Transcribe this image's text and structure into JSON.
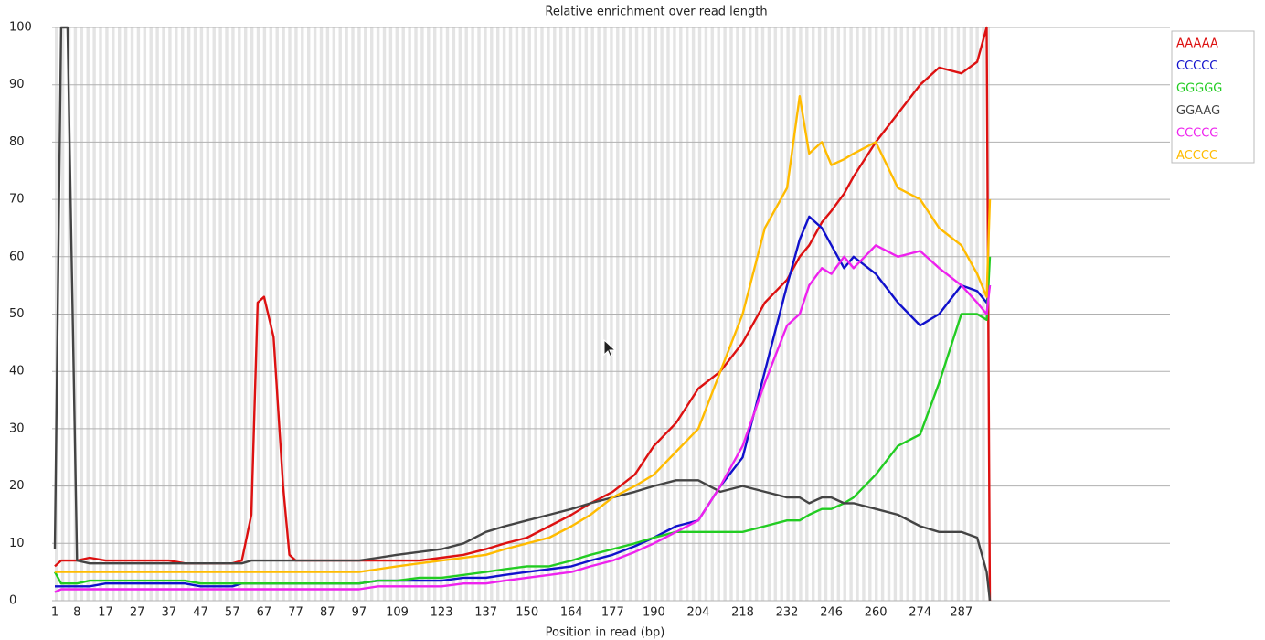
{
  "chart_data": {
    "type": "line",
    "title": "Relative enrichment over read length",
    "x_label": "Position in read (bp)",
    "x": [
      1,
      3,
      5,
      8,
      12,
      17,
      22,
      27,
      32,
      37,
      42,
      47,
      52,
      57,
      60,
      63,
      65,
      67,
      70,
      73,
      75,
      77,
      82,
      87,
      92,
      97,
      103,
      109,
      116,
      123,
      130,
      137,
      143,
      150,
      157,
      164,
      170,
      177,
      184,
      190,
      197,
      204,
      211,
      218,
      225,
      232,
      236,
      239,
      243,
      246,
      250,
      253,
      260,
      267,
      274,
      280,
      287,
      292,
      295,
      296
    ],
    "xlim": [
      1,
      296
    ],
    "xticks": [
      1,
      8,
      17,
      27,
      37,
      47,
      57,
      67,
      77,
      87,
      97,
      109,
      123,
      137,
      150,
      164,
      177,
      190,
      204,
      218,
      232,
      246,
      260,
      274,
      287
    ],
    "ylim": [
      0,
      100
    ],
    "yticks": [
      0,
      10,
      20,
      30,
      40,
      50,
      60,
      70,
      80,
      90,
      100
    ],
    "grid": true,
    "legend": "right",
    "series": [
      {
        "name": "AAAAA",
        "color": "#dd1111",
        "values": [
          6,
          7,
          7,
          7,
          7.5,
          7,
          7,
          7,
          7,
          7,
          6.5,
          6.5,
          6.5,
          6.5,
          7,
          15,
          52,
          53,
          46,
          20,
          8,
          7,
          7,
          7,
          7,
          7,
          7,
          7,
          7,
          7.5,
          8,
          9,
          10,
          11,
          13,
          15,
          17,
          19,
          22,
          27,
          31,
          37,
          40,
          45,
          52,
          56,
          60,
          62,
          66,
          68,
          71,
          74,
          80,
          85,
          90,
          93,
          92,
          94,
          100,
          0
        ]
      },
      {
        "name": "CCCCC",
        "color": "#1111cc",
        "values": [
          2.5,
          2.5,
          2.5,
          2.5,
          2.5,
          3,
          3,
          3,
          3,
          3,
          3,
          2.5,
          2.5,
          2.5,
          3,
          3,
          3,
          3,
          3,
          3,
          3,
          3,
          3,
          3,
          3,
          3,
          3.5,
          3.5,
          3.5,
          3.5,
          4,
          4,
          4.5,
          5,
          5.5,
          6,
          7,
          8,
          9.5,
          11,
          13,
          14,
          20,
          25,
          40,
          55,
          63,
          67,
          65,
          62,
          58,
          60,
          57,
          52,
          48,
          50,
          55,
          54,
          52,
          55
        ]
      },
      {
        "name": "GGGGG",
        "color": "#22cc22",
        "values": [
          5,
          3,
          3,
          3,
          3.5,
          3.5,
          3.5,
          3.5,
          3.5,
          3.5,
          3.5,
          3,
          3,
          3,
          3,
          3,
          3,
          3,
          3,
          3,
          3,
          3,
          3,
          3,
          3,
          3,
          3.5,
          3.5,
          4,
          4,
          4.5,
          5,
          5.5,
          6,
          6,
          7,
          8,
          9,
          10,
          11,
          12,
          12,
          12,
          12,
          13,
          14,
          14,
          15,
          16,
          16,
          17,
          18,
          22,
          27,
          29,
          38,
          50,
          50,
          49,
          60
        ]
      },
      {
        "name": "GGAAG",
        "color": "#444444",
        "values": [
          9,
          100,
          100,
          7,
          6.5,
          6.5,
          6.5,
          6.5,
          6.5,
          6.5,
          6.5,
          6.5,
          6.5,
          6.5,
          6.5,
          7,
          7,
          7,
          7,
          7,
          7,
          7,
          7,
          7,
          7,
          7,
          7.5,
          8,
          8.5,
          9,
          10,
          12,
          13,
          14,
          15,
          16,
          17,
          18,
          19,
          20,
          21,
          21,
          19,
          20,
          19,
          18,
          18,
          17,
          18,
          18,
          17,
          17,
          16,
          15,
          13,
          12,
          12,
          11,
          5,
          0
        ]
      },
      {
        "name": "CCCCG",
        "color": "#ee22ee",
        "values": [
          1.5,
          2,
          2,
          2,
          2,
          2,
          2,
          2,
          2,
          2,
          2,
          2,
          2,
          2,
          2,
          2,
          2,
          2,
          2,
          2,
          2,
          2,
          2,
          2,
          2,
          2,
          2.5,
          2.5,
          2.5,
          2.5,
          3,
          3,
          3.5,
          4,
          4.5,
          5,
          6,
          7,
          8.5,
          10,
          12,
          14,
          20,
          27,
          38,
          48,
          50,
          55,
          58,
          57,
          60,
          58,
          62,
          60,
          61,
          58,
          55,
          52,
          50,
          55
        ]
      },
      {
        "name": "ACCCC",
        "color": "#ffbb00",
        "values": [
          5,
          5,
          5,
          5,
          5,
          5,
          5,
          5,
          5,
          5,
          5,
          5,
          5,
          5,
          5,
          5,
          5,
          5,
          5,
          5,
          5,
          5,
          5,
          5,
          5,
          5,
          5.5,
          6,
          6.5,
          7,
          7.5,
          8,
          9,
          10,
          11,
          13,
          15,
          18,
          20,
          22,
          26,
          30,
          40,
          50,
          65,
          72,
          88,
          78,
          80,
          76,
          77,
          78,
          80,
          72,
          70,
          65,
          62,
          57,
          53,
          70
        ]
      }
    ]
  }
}
